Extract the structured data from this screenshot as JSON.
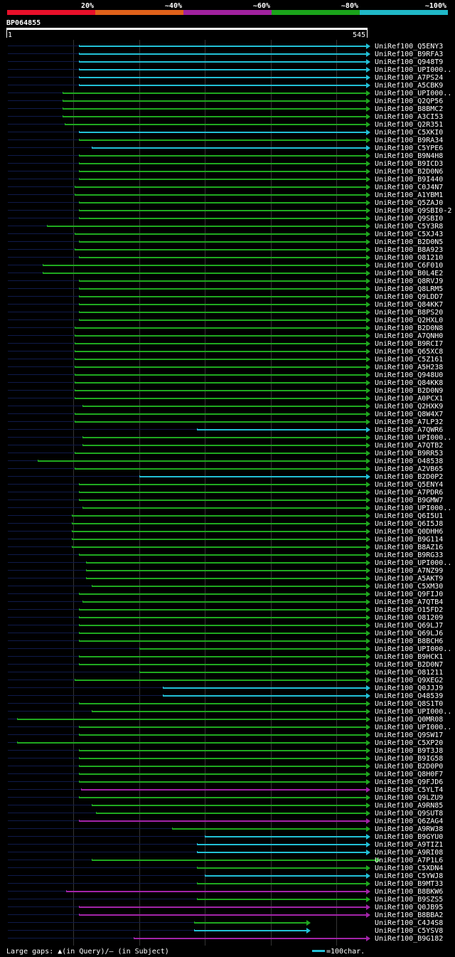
{
  "chart_data": {
    "type": "alignment-overview",
    "query_id": "BP064855",
    "query_start": "1",
    "query_end": "545",
    "query_length": 545,
    "legend_bins": [
      {
        "label": "20%",
        "color": "#e8102a"
      },
      {
        "label": "~40%",
        "color": "#e0611a"
      },
      {
        "label": "~60%",
        "color": "#a0219e"
      },
      {
        "label": "~80%",
        "color": "#1aa31a"
      },
      {
        "label": "~100%",
        "color": "#20b8c8"
      }
    ],
    "colors": {
      "cyan": "#22c0d6",
      "green": "#1fa81f",
      "purple": "#a224a8",
      "navy": "#0f1a4a"
    },
    "hits": [
      {
        "name": "UniRef100_Q5ENY3",
        "color": "cyan",
        "s": 108,
        "e": 545
      },
      {
        "name": "UniRef100_B9RFA3",
        "color": "cyan",
        "s": 108,
        "e": 545
      },
      {
        "name": "UniRef100_Q948T9",
        "color": "cyan",
        "s": 108,
        "e": 545
      },
      {
        "name": "UniRef100_UPI000..",
        "color": "cyan",
        "s": 108,
        "e": 545
      },
      {
        "name": "UniRef100_A7PS24",
        "color": "cyan",
        "s": 108,
        "e": 545
      },
      {
        "name": "UniRef100_A5CBK9",
        "color": "cyan",
        "s": 108,
        "e": 545
      },
      {
        "name": "UniRef100_UPI000..",
        "color": "green",
        "s": 83,
        "e": 545
      },
      {
        "name": "UniRef100_Q2QP56",
        "color": "green",
        "s": 83,
        "e": 545
      },
      {
        "name": "UniRef100_B8BMC2",
        "color": "green",
        "s": 83,
        "e": 545
      },
      {
        "name": "UniRef100_A3CI53",
        "color": "green",
        "s": 83,
        "e": 545
      },
      {
        "name": "UniRef100_Q2R351",
        "color": "green",
        "s": 86,
        "e": 545
      },
      {
        "name": "UniRef100_C5XKI0",
        "color": "cyan",
        "s": 108,
        "e": 545
      },
      {
        "name": "UniRef100_B9RA34",
        "color": "green",
        "s": 108,
        "e": 545
      },
      {
        "name": "UniRef100_C5YPE6",
        "color": "cyan",
        "s": 128,
        "e": 545
      },
      {
        "name": "UniRef100_B9N4H8",
        "color": "green",
        "s": 108,
        "e": 545
      },
      {
        "name": "UniRef100_B9ICD3",
        "color": "green",
        "s": 108,
        "e": 545
      },
      {
        "name": "UniRef100_B2D0N6",
        "color": "green",
        "s": 108,
        "e": 545
      },
      {
        "name": "UniRef100_B9I440",
        "color": "green",
        "s": 108,
        "e": 545
      },
      {
        "name": "UniRef100_C0J4N7",
        "color": "green",
        "s": 102,
        "e": 545
      },
      {
        "name": "UniRef100_A1YBM1",
        "color": "green",
        "s": 102,
        "e": 545
      },
      {
        "name": "UniRef100_Q5ZAJ0",
        "color": "green",
        "s": 108,
        "e": 545
      },
      {
        "name": "UniRef100_Q9SBI0-2",
        "color": "green",
        "s": 108,
        "e": 545
      },
      {
        "name": "UniRef100_Q9SBI0",
        "color": "green",
        "s": 108,
        "e": 545
      },
      {
        "name": "UniRef100_C5Y3R8",
        "color": "green",
        "s": 60,
        "e": 545
      },
      {
        "name": "UniRef100_C5XJ43",
        "color": "green",
        "s": 102,
        "e": 545
      },
      {
        "name": "UniRef100_B2D0N5",
        "color": "green",
        "s": 108,
        "e": 545
      },
      {
        "name": "UniRef100_B8A923",
        "color": "green",
        "s": 102,
        "e": 545
      },
      {
        "name": "UniRef100_O81210",
        "color": "green",
        "s": 108,
        "e": 545
      },
      {
        "name": "UniRef100_C6F010",
        "color": "green",
        "s": 53,
        "e": 545
      },
      {
        "name": "UniRef100_B0L4E2",
        "color": "green",
        "s": 53,
        "e": 545
      },
      {
        "name": "UniRef100_Q8RVJ9",
        "color": "green",
        "s": 108,
        "e": 545
      },
      {
        "name": "UniRef100_Q8LRM5",
        "color": "green",
        "s": 108,
        "e": 545
      },
      {
        "name": "UniRef100_Q9LDD7",
        "color": "green",
        "s": 108,
        "e": 545
      },
      {
        "name": "UniRef100_Q84KK7",
        "color": "green",
        "s": 108,
        "e": 545
      },
      {
        "name": "UniRef100_B8PS20",
        "color": "green",
        "s": 108,
        "e": 545
      },
      {
        "name": "UniRef100_Q2HXL0",
        "color": "green",
        "s": 108,
        "e": 545
      },
      {
        "name": "UniRef100_B2D0N8",
        "color": "green",
        "s": 102,
        "e": 545
      },
      {
        "name": "UniRef100_A7QNH0",
        "color": "green",
        "s": 102,
        "e": 545
      },
      {
        "name": "UniRef100_B9RCI7",
        "color": "green",
        "s": 102,
        "e": 545
      },
      {
        "name": "UniRef100_Q65XC8",
        "color": "green",
        "s": 102,
        "e": 545
      },
      {
        "name": "UniRef100_C5Z161",
        "color": "green",
        "s": 102,
        "e": 545
      },
      {
        "name": "UniRef100_A5H238",
        "color": "green",
        "s": 102,
        "e": 545
      },
      {
        "name": "UniRef100_Q948U0",
        "color": "green",
        "s": 102,
        "e": 545
      },
      {
        "name": "UniRef100_Q84KK8",
        "color": "green",
        "s": 102,
        "e": 545
      },
      {
        "name": "UniRef100_B2D0N9",
        "color": "green",
        "s": 102,
        "e": 545
      },
      {
        "name": "UniRef100_A0PCX1",
        "color": "green",
        "s": 102,
        "e": 545
      },
      {
        "name": "UniRef100_Q2HXK9",
        "color": "green",
        "s": 114,
        "e": 545
      },
      {
        "name": "UniRef100_Q8W4X7",
        "color": "green",
        "s": 102,
        "e": 545
      },
      {
        "name": "UniRef100_A7LP32",
        "color": "green",
        "s": 102,
        "e": 545
      },
      {
        "name": "UniRef100_A7QWR6",
        "color": "cyan",
        "s": 288,
        "e": 545
      },
      {
        "name": "UniRef100_UPI000..",
        "color": "green",
        "s": 114,
        "e": 545
      },
      {
        "name": "UniRef100_A7QTB2",
        "color": "green",
        "s": 114,
        "e": 545
      },
      {
        "name": "UniRef100_B9RR53",
        "color": "green",
        "s": 102,
        "e": 545
      },
      {
        "name": "UniRef100_O48538",
        "color": "green",
        "s": 45,
        "e": 545
      },
      {
        "name": "UniRef100_A2VB65",
        "color": "green",
        "s": 102,
        "e": 545
      },
      {
        "name": "UniRef100_B2D0P2",
        "color": "cyan",
        "s": 200,
        "e": 545
      },
      {
        "name": "UniRef100_Q5ENY4",
        "color": "green",
        "s": 108,
        "e": 545
      },
      {
        "name": "UniRef100_A7PDR6",
        "color": "green",
        "s": 108,
        "e": 545
      },
      {
        "name": "UniRef100_B9GMW7",
        "color": "green",
        "s": 108,
        "e": 545
      },
      {
        "name": "UniRef100_UPI000..",
        "color": "green",
        "s": 114,
        "e": 545
      },
      {
        "name": "UniRef100_Q6I5U1",
        "color": "green",
        "s": 97,
        "e": 545
      },
      {
        "name": "UniRef100_Q6I5J8",
        "color": "green",
        "s": 97,
        "e": 545
      },
      {
        "name": "UniRef100_Q0DHH6",
        "color": "green",
        "s": 97,
        "e": 545
      },
      {
        "name": "UniRef100_B9G114",
        "color": "green",
        "s": 97,
        "e": 545
      },
      {
        "name": "UniRef100_B8AZ16",
        "color": "green",
        "s": 97,
        "e": 545
      },
      {
        "name": "UniRef100_B9RG33",
        "color": "green",
        "s": 108,
        "e": 545
      },
      {
        "name": "UniRef100_UPI000..",
        "color": "green",
        "s": 119,
        "e": 545
      },
      {
        "name": "UniRef100_A7NZ99",
        "color": "green",
        "s": 119,
        "e": 545
      },
      {
        "name": "UniRef100_A5AKT9",
        "color": "green",
        "s": 119,
        "e": 545
      },
      {
        "name": "UniRef100_C5XM30",
        "color": "green",
        "s": 128,
        "e": 545
      },
      {
        "name": "UniRef100_Q9FIJ0",
        "color": "green",
        "s": 108,
        "e": 545
      },
      {
        "name": "UniRef100_A7QTB4",
        "color": "green",
        "s": 114,
        "e": 545
      },
      {
        "name": "UniRef100_O15FD2",
        "color": "green",
        "s": 108,
        "e": 545
      },
      {
        "name": "UniRef100_O81209",
        "color": "green",
        "s": 108,
        "e": 545
      },
      {
        "name": "UniRef100_Q69LJ7",
        "color": "green",
        "s": 108,
        "e": 545
      },
      {
        "name": "UniRef100_Q69LJ6",
        "color": "green",
        "s": 108,
        "e": 545
      },
      {
        "name": "UniRef100_B8BCH6",
        "color": "green",
        "s": 108,
        "e": 545
      },
      {
        "name": "UniRef100_UPI000..",
        "color": "green",
        "s": 200,
        "e": 545
      },
      {
        "name": "UniRef100_B9HCK1",
        "color": "green",
        "s": 108,
        "e": 545
      },
      {
        "name": "UniRef100_B2D0N7",
        "color": "green",
        "s": 108,
        "e": 545
      },
      {
        "name": "UniRef100_O81211",
        "color": "green",
        "s": 200,
        "e": 545
      },
      {
        "name": "UniRef100_Q9XEG2",
        "color": "green",
        "s": 102,
        "e": 545
      },
      {
        "name": "UniRef100_Q0JJJ9",
        "color": "cyan",
        "s": 236,
        "e": 545
      },
      {
        "name": "UniRef100_O48539",
        "color": "cyan",
        "s": 236,
        "e": 545
      },
      {
        "name": "UniRef100_Q8S1T0",
        "color": "green",
        "s": 108,
        "e": 545
      },
      {
        "name": "UniRef100_UPI000..",
        "color": "green",
        "s": 128,
        "e": 545
      },
      {
        "name": "UniRef100_Q0MR08",
        "color": "green",
        "s": 14,
        "e": 545
      },
      {
        "name": "UniRef100_UPI000..",
        "color": "green",
        "s": 108,
        "e": 545
      },
      {
        "name": "UniRef100_Q9SW17",
        "color": "green",
        "s": 108,
        "e": 545
      },
      {
        "name": "UniRef100_C5XP20",
        "color": "green",
        "s": 14,
        "e": 545
      },
      {
        "name": "UniRef100_B9T3J8",
        "color": "green",
        "s": 108,
        "e": 545
      },
      {
        "name": "UniRef100_B9IG58",
        "color": "green",
        "s": 108,
        "e": 545
      },
      {
        "name": "UniRef100_B2D0P0",
        "color": "green",
        "s": 108,
        "e": 545
      },
      {
        "name": "UniRef100_Q8H0F7",
        "color": "green",
        "s": 108,
        "e": 545
      },
      {
        "name": "UniRef100_Q9FJD6",
        "color": "green",
        "s": 108,
        "e": 545
      },
      {
        "name": "UniRef100_C5YLT4",
        "color": "purple",
        "s": 111,
        "e": 545
      },
      {
        "name": "UniRef100_Q9LZU9",
        "color": "green",
        "s": 108,
        "e": 545
      },
      {
        "name": "UniRef100_A9RN85",
        "color": "green",
        "s": 128,
        "e": 545
      },
      {
        "name": "UniRef100_Q9SUT8",
        "color": "green",
        "s": 134,
        "e": 545
      },
      {
        "name": "UniRef100_Q6ZAG4",
        "color": "purple",
        "s": 108,
        "e": 545
      },
      {
        "name": "UniRef100_A9RW38",
        "color": "green",
        "s": 250,
        "e": 545
      },
      {
        "name": "UniRef100_B9GYU0",
        "color": "cyan",
        "s": 300,
        "e": 545
      },
      {
        "name": "UniRef100_A9TIZ1",
        "color": "cyan",
        "s": 288,
        "e": 545
      },
      {
        "name": "UniRef100_A9RI08",
        "color": "cyan",
        "s": 288,
        "e": 545
      },
      {
        "name": "UniRef100_A7P1L6",
        "color": "green",
        "s": 128,
        "e": 560
      },
      {
        "name": "UniRef100_C5XDN4",
        "color": "green",
        "s": 288,
        "e": 545
      },
      {
        "name": "UniRef100_C5YWJ8",
        "color": "cyan",
        "s": 300,
        "e": 545
      },
      {
        "name": "UniRef100_B9MT33",
        "color": "green",
        "s": 288,
        "e": 545
      },
      {
        "name": "UniRef100_B8BKW6",
        "color": "purple",
        "s": 89,
        "e": 545
      },
      {
        "name": "UniRef100_B9SZS5",
        "color": "green",
        "s": 288,
        "e": 545
      },
      {
        "name": "UniRef100_Q0JB95",
        "color": "purple",
        "s": 108,
        "e": 545
      },
      {
        "name": "UniRef100_B8BBA2",
        "color": "purple",
        "s": 108,
        "e": 545
      },
      {
        "name": "UniRef100_C4J4S8",
        "color": "green",
        "s": 283,
        "e": 454
      },
      {
        "name": "UniRef100_C5YSV8",
        "color": "cyan",
        "s": 283,
        "e": 454
      },
      {
        "name": "UniRef100_B9G182",
        "color": "purple",
        "s": 191,
        "e": 545
      }
    ],
    "footer_gaps_label": "Large gaps: ▲(in Query)/— (in Subject)",
    "footer_scale_label": "=100char."
  }
}
